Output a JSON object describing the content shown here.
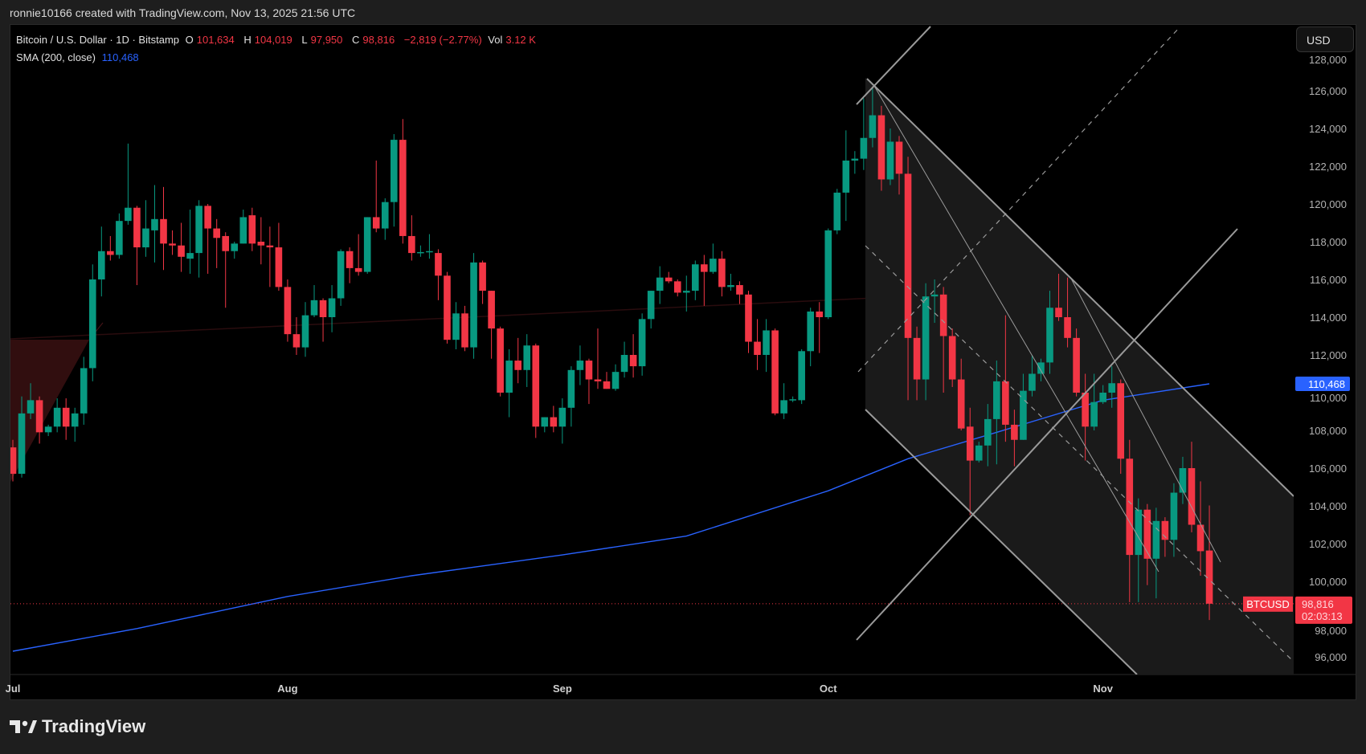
{
  "header": {
    "credit": "ronnie10166 created with TradingView.com, Nov 13, 2025 21:56 UTC"
  },
  "legend": {
    "symbol": "Bitcoin / U.S. Dollar · 1D · Bitstamp",
    "o_label": "O",
    "o": "101,634",
    "h_label": "H",
    "h": "104,019",
    "l_label": "L",
    "l": "97,950",
    "c_label": "C",
    "c": "98,816",
    "change": "−2,819 (−2.77%)",
    "vol_label": "Vol",
    "vol": "3.12 K",
    "sma_label": "SMA (200, close)",
    "sma_value": "110,468"
  },
  "currency_button": "USD",
  "footer": {
    "brand": "TradingView",
    "logo_icon": "tradingview-logo-icon"
  },
  "colors": {
    "up": "#089981",
    "down": "#f23645",
    "sma": "#2962ff",
    "drawing": "#8a8a8a",
    "background": "#000000"
  },
  "chart_data": {
    "type": "candlestick",
    "symbol": "BTCUSD",
    "x_tick_labels": [
      "Jul",
      "Aug",
      "Sep",
      "Oct",
      "Nov"
    ],
    "x_tick_dates": [
      "Jul 1",
      "Aug 1",
      "Sep 1",
      "Oct 1",
      "Nov 1"
    ],
    "y_ticks": [
      96000,
      98000,
      100000,
      102000,
      104000,
      106000,
      108000,
      110000,
      112000,
      114000,
      116000,
      118000,
      120000,
      122000,
      124000,
      126000,
      128000
    ],
    "y_tick_labels": [
      "96,000",
      "98,000",
      "100,000",
      "102,000",
      "104,000",
      "106,000",
      "108,000",
      "110,000",
      "112,000",
      "114,000",
      "116,000",
      "118,000",
      "120,000",
      "122,000",
      "124,000",
      "126,000",
      "128,000"
    ],
    "ylim": [
      94500,
      129800
    ],
    "last_price": 98816,
    "last_price_label": "98,816",
    "countdown": "02:03:13",
    "symbol_tag": "BTCUSD",
    "sma_last": 110468,
    "sma_last_label": "110,468",
    "columns": [
      "date",
      "open",
      "high",
      "low",
      "close"
    ],
    "candles": [
      [
        "Jul 1",
        107100,
        107500,
        105300,
        105700
      ],
      [
        "Jul 2",
        105700,
        109800,
        105500,
        108900
      ],
      [
        "Jul 3",
        108900,
        110500,
        108600,
        109600
      ],
      [
        "Jul 4",
        109600,
        109800,
        107300,
        107900
      ],
      [
        "Jul 5",
        107900,
        108300,
        107700,
        108200
      ],
      [
        "Jul 6",
        108200,
        109700,
        107900,
        109200
      ],
      [
        "Jul 7",
        109200,
        109700,
        107500,
        108200
      ],
      [
        "Jul 8",
        108200,
        109200,
        107400,
        108900
      ],
      [
        "Jul 9",
        108900,
        111900,
        108300,
        111300
      ],
      [
        "Jul 10",
        111300,
        116800,
        110600,
        116000
      ],
      [
        "Jul 11",
        116000,
        118800,
        115100,
        117500
      ],
      [
        "Jul 12",
        117500,
        118300,
        117000,
        117300
      ],
      [
        "Jul 13",
        117300,
        119500,
        117100,
        119100
      ],
      [
        "Jul 14",
        119100,
        123200,
        118900,
        119800
      ],
      [
        "Jul 15",
        119800,
        119900,
        115700,
        117700
      ],
      [
        "Jul 16",
        117700,
        120200,
        117200,
        118700
      ],
      [
        "Jul 17",
        118600,
        121000,
        116900,
        119200
      ],
      [
        "Jul 18",
        119200,
        120900,
        116500,
        117900
      ],
      [
        "Jul 19",
        117900,
        118600,
        117300,
        117800
      ],
      [
        "Jul 20",
        117800,
        119000,
        116400,
        117200
      ],
      [
        "Jul 21",
        117100,
        119700,
        116300,
        117400
      ],
      [
        "Jul 22",
        117400,
        120200,
        116100,
        119900
      ],
      [
        "Jul 23",
        119900,
        120000,
        116300,
        118700
      ],
      [
        "Jul 24",
        118700,
        119200,
        116600,
        118200
      ],
      [
        "Jul 25",
        118300,
        118500,
        114500,
        117500
      ],
      [
        "Jul 26",
        117500,
        118000,
        117100,
        117900
      ],
      [
        "Jul 27",
        117900,
        119700,
        117900,
        119300
      ],
      [
        "Jul 28",
        119400,
        119800,
        117500,
        117900
      ],
      [
        "Jul 29",
        118000,
        119300,
        116800,
        117800
      ],
      [
        "Jul 30",
        117800,
        118800,
        115600,
        117700
      ],
      [
        "Jul 31",
        117700,
        119000,
        115400,
        115600
      ],
      [
        "Aug 1",
        115600,
        116000,
        112700,
        113100
      ],
      [
        "Aug 2",
        113100,
        114000,
        112000,
        112400
      ],
      [
        "Aug 3",
        112400,
        114800,
        111900,
        114100
      ],
      [
        "Aug 4",
        114100,
        115700,
        114000,
        114900
      ],
      [
        "Aug 5",
        114900,
        115000,
        112700,
        114000
      ],
      [
        "Aug 6",
        114000,
        115700,
        113200,
        115000
      ],
      [
        "Aug 7",
        115000,
        117600,
        114600,
        117500
      ],
      [
        "Aug 8",
        117500,
        117700,
        115800,
        116600
      ],
      [
        "Aug 9",
        116600,
        118400,
        116200,
        116400
      ],
      [
        "Aug 10",
        116400,
        119300,
        116300,
        119300
      ],
      [
        "Aug 11",
        119300,
        122300,
        118500,
        118700
      ],
      [
        "Aug 12",
        118700,
        120300,
        118100,
        120100
      ],
      [
        "Aug 13",
        120100,
        123700,
        118800,
        123400
      ],
      [
        "Aug 14",
        123400,
        124500,
        117900,
        118300
      ],
      [
        "Aug 15",
        118300,
        119400,
        117000,
        117400
      ],
      [
        "Aug 16",
        117400,
        117800,
        117200,
        117450
      ],
      [
        "Aug 17",
        117450,
        118400,
        117100,
        117500
      ],
      [
        "Aug 18",
        117400,
        117600,
        114900,
        116200
      ],
      [
        "Aug 19",
        116200,
        116400,
        112600,
        112800
      ],
      [
        "Aug 20",
        112800,
        114800,
        112300,
        114200
      ],
      [
        "Aug 21",
        114200,
        114600,
        112200,
        112400
      ],
      [
        "Aug 22",
        112400,
        117400,
        111800,
        116900
      ],
      [
        "Aug 23",
        116900,
        117000,
        114700,
        115400
      ],
      [
        "Aug 24",
        115400,
        115400,
        111800,
        113400
      ],
      [
        "Aug 25",
        113400,
        113500,
        109800,
        110000
      ],
      [
        "Aug 26",
        110000,
        112300,
        108700,
        111700
      ],
      [
        "Aug 27",
        111700,
        112900,
        110500,
        111200
      ],
      [
        "Aug 28",
        111200,
        113100,
        110300,
        112500
      ],
      [
        "Aug 29",
        112500,
        112600,
        107600,
        108200
      ],
      [
        "Aug 30",
        108200,
        108700,
        107900,
        108700
      ],
      [
        "Aug 31",
        108700,
        109300,
        107900,
        108200
      ],
      [
        "Sep 1",
        108200,
        109700,
        107300,
        109200
      ],
      [
        "Sep 2",
        109200,
        111400,
        108200,
        111200
      ],
      [
        "Sep 3",
        111200,
        112500,
        110400,
        111700
      ],
      [
        "Sep 4",
        111700,
        111800,
        109400,
        110700
      ],
      [
        "Sep 5",
        110700,
        113400,
        110200,
        110600
      ],
      [
        "Sep 6",
        110600,
        111100,
        110200,
        110200
      ],
      [
        "Sep 7",
        110200,
        111500,
        110100,
        111100
      ],
      [
        "Sep 8",
        111100,
        112700,
        110800,
        112000
      ],
      [
        "Sep 9",
        112000,
        113100,
        110800,
        111400
      ],
      [
        "Sep 10",
        111400,
        114200,
        110900,
        113900
      ],
      [
        "Sep 11",
        113900,
        115400,
        113400,
        115400
      ],
      [
        "Sep 12",
        115400,
        116700,
        114700,
        116100
      ],
      [
        "Sep 13",
        116100,
        116400,
        115800,
        115900
      ],
      [
        "Sep 14",
        115900,
        116000,
        115100,
        115300
      ],
      [
        "Sep 15",
        115300,
        116200,
        114300,
        115400
      ],
      [
        "Sep 16",
        115400,
        117000,
        114900,
        116800
      ],
      [
        "Sep 17",
        116800,
        117300,
        114600,
        116400
      ],
      [
        "Sep 18",
        116400,
        117900,
        116300,
        117100
      ],
      [
        "Sep 19",
        117100,
        117500,
        115100,
        115600
      ],
      [
        "Sep 20",
        115600,
        116300,
        115400,
        115700
      ],
      [
        "Sep 21",
        115700,
        115900,
        114700,
        115200
      ],
      [
        "Sep 22",
        115200,
        115400,
        112100,
        112700
      ],
      [
        "Sep 23",
        112700,
        113900,
        111200,
        112000
      ],
      [
        "Sep 24",
        112000,
        113900,
        111100,
        113300
      ],
      [
        "Sep 25",
        113300,
        113400,
        108800,
        108900
      ],
      [
        "Sep 26",
        108900,
        110500,
        108600,
        109600
      ],
      [
        "Sep 27",
        109600,
        109800,
        109500,
        109650
      ],
      [
        "Sep 28",
        109600,
        112300,
        109400,
        112200
      ],
      [
        "Sep 29",
        112200,
        114500,
        111400,
        114300
      ],
      [
        "Sep 30",
        114300,
        114800,
        112100,
        114000
      ],
      [
        "Oct 1",
        114000,
        118700,
        113900,
        118600
      ],
      [
        "Oct 2",
        118600,
        120800,
        118400,
        120600
      ],
      [
        "Oct 3",
        120600,
        123900,
        119100,
        122300
      ],
      [
        "Oct 4",
        122300,
        122800,
        121600,
        122400
      ],
      [
        "Oct 5",
        122400,
        125600,
        121800,
        123500
      ],
      [
        "Oct 6",
        123500,
        126200,
        123000,
        124700
      ],
      [
        "Oct 7",
        124700,
        125200,
        120700,
        121300
      ],
      [
        "Oct 8",
        121300,
        124000,
        121000,
        123300
      ],
      [
        "Oct 9",
        123300,
        123600,
        120500,
        121600
      ],
      [
        "Oct 10",
        121600,
        122500,
        109600,
        112900
      ],
      [
        "Oct 11",
        112900,
        113500,
        109600,
        110700
      ],
      [
        "Oct 12",
        110700,
        115800,
        109600,
        115100
      ],
      [
        "Oct 13",
        115100,
        116000,
        113700,
        115200
      ],
      [
        "Oct 14",
        115200,
        115600,
        110000,
        113000
      ],
      [
        "Oct 15",
        113000,
        113400,
        110300,
        110700
      ],
      [
        "Oct 16",
        110700,
        111800,
        108000,
        108100
      ],
      [
        "Oct 17",
        108200,
        109200,
        103500,
        106400
      ],
      [
        "Oct 18",
        106400,
        107400,
        106300,
        107200
      ],
      [
        "Oct 19",
        107200,
        109400,
        106100,
        108600
      ],
      [
        "Oct 20",
        108600,
        111700,
        106200,
        110600
      ],
      [
        "Oct 21",
        110600,
        114100,
        107400,
        108300
      ],
      [
        "Oct 22",
        108300,
        109100,
        106100,
        107500
      ],
      [
        "Oct 23",
        107500,
        111000,
        107500,
        110100
      ],
      [
        "Oct 24",
        110100,
        112000,
        109800,
        111000
      ],
      [
        "Oct 25",
        111000,
        111800,
        110600,
        111600
      ],
      [
        "Oct 26",
        111600,
        115400,
        111000,
        114500
      ],
      [
        "Oct 27",
        114500,
        116300,
        113800,
        114000
      ],
      [
        "Oct 28",
        114000,
        116100,
        112400,
        112900
      ],
      [
        "Oct 29",
        112900,
        113400,
        109800,
        110000
      ],
      [
        "Oct 30",
        110000,
        111000,
        106400,
        108200
      ],
      [
        "Oct 31",
        108200,
        111000,
        108000,
        109500
      ],
      [
        "Nov 1",
        109500,
        110400,
        109400,
        110000
      ],
      [
        "Nov 2",
        110000,
        111400,
        109200,
        110500
      ],
      [
        "Nov 3",
        110500,
        110700,
        105700,
        106500
      ],
      [
        "Nov 4",
        106500,
        107500,
        98900,
        101400
      ],
      [
        "Nov 5",
        101400,
        104400,
        98900,
        103800
      ],
      [
        "Nov 6",
        103800,
        104100,
        99800,
        101200
      ],
      [
        "Nov 7",
        101200,
        103900,
        99100,
        103200
      ],
      [
        "Nov 8",
        103200,
        103400,
        101300,
        102200
      ],
      [
        "Nov 9",
        102200,
        105200,
        101300,
        104700
      ],
      [
        "Nov 10",
        104700,
        106600,
        104100,
        106000
      ],
      [
        "Nov 11",
        106000,
        107400,
        102600,
        103000
      ],
      [
        "Nov 12",
        103000,
        105300,
        100300,
        101600
      ],
      [
        "Nov 13",
        101634,
        104019,
        97950,
        98816
      ]
    ],
    "sma": {
      "name": "SMA (200, close)",
      "points": [
        [
          "Jul 1",
          96300
        ],
        [
          "Jul 15",
          97500
        ],
        [
          "Aug 1",
          99200
        ],
        [
          "Aug 15",
          100300
        ],
        [
          "Sep 1",
          101400
        ],
        [
          "Sep 15",
          102400
        ],
        [
          "Oct 1",
          104800
        ],
        [
          "Oct 10",
          106500
        ],
        [
          "Oct 20",
          107900
        ],
        [
          "Nov 1",
          109600
        ],
        [
          "Nov 13",
          110468
        ]
      ]
    }
  }
}
